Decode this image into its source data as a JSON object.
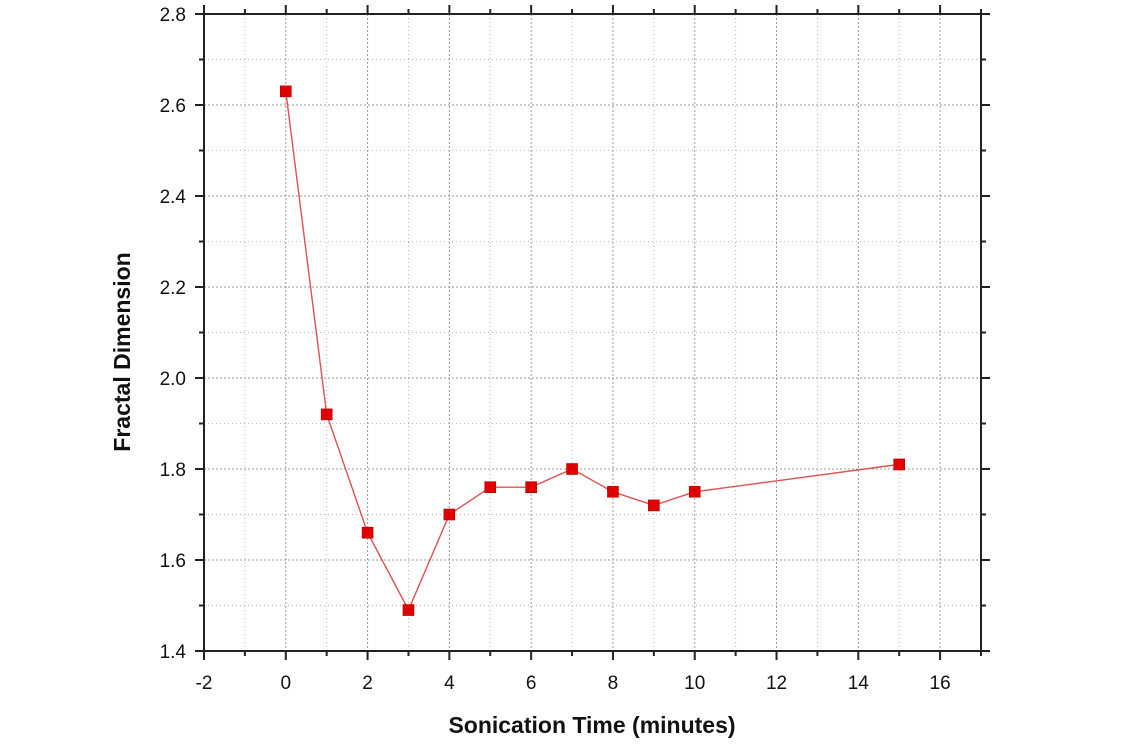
{
  "chart_data": {
    "type": "scatter",
    "xlabel": "Sonication Time (minutes)",
    "ylabel": "Fractal Dimension",
    "xlim": [
      -2,
      17
    ],
    "ylim": [
      1.4,
      2.8
    ],
    "xticks": [
      -2,
      0,
      2,
      4,
      6,
      8,
      10,
      12,
      14,
      16
    ],
    "yticks": [
      1.4,
      1.6,
      1.8,
      2.0,
      2.2,
      2.4,
      2.6,
      2.8
    ],
    "xtick_labels": [
      "-2",
      "0",
      "2",
      "4",
      "6",
      "8",
      "10",
      "12",
      "14",
      "16"
    ],
    "ytick_labels": [
      "1.4",
      "1.6",
      "1.8",
      "2.0",
      "2.2",
      "2.4",
      "2.6",
      "2.8"
    ],
    "grid": true,
    "legend": "none",
    "colors": {
      "marker": "#e00000",
      "line": "#e05050"
    },
    "series": [
      {
        "marker": "square",
        "connected": true,
        "x": [
          0,
          1,
          2,
          3,
          4,
          5,
          6,
          7,
          8,
          9,
          10,
          15
        ],
        "y": [
          2.63,
          1.92,
          1.66,
          1.49,
          1.7,
          1.76,
          1.76,
          1.8,
          1.75,
          1.72,
          1.75,
          1.81
        ]
      }
    ]
  }
}
